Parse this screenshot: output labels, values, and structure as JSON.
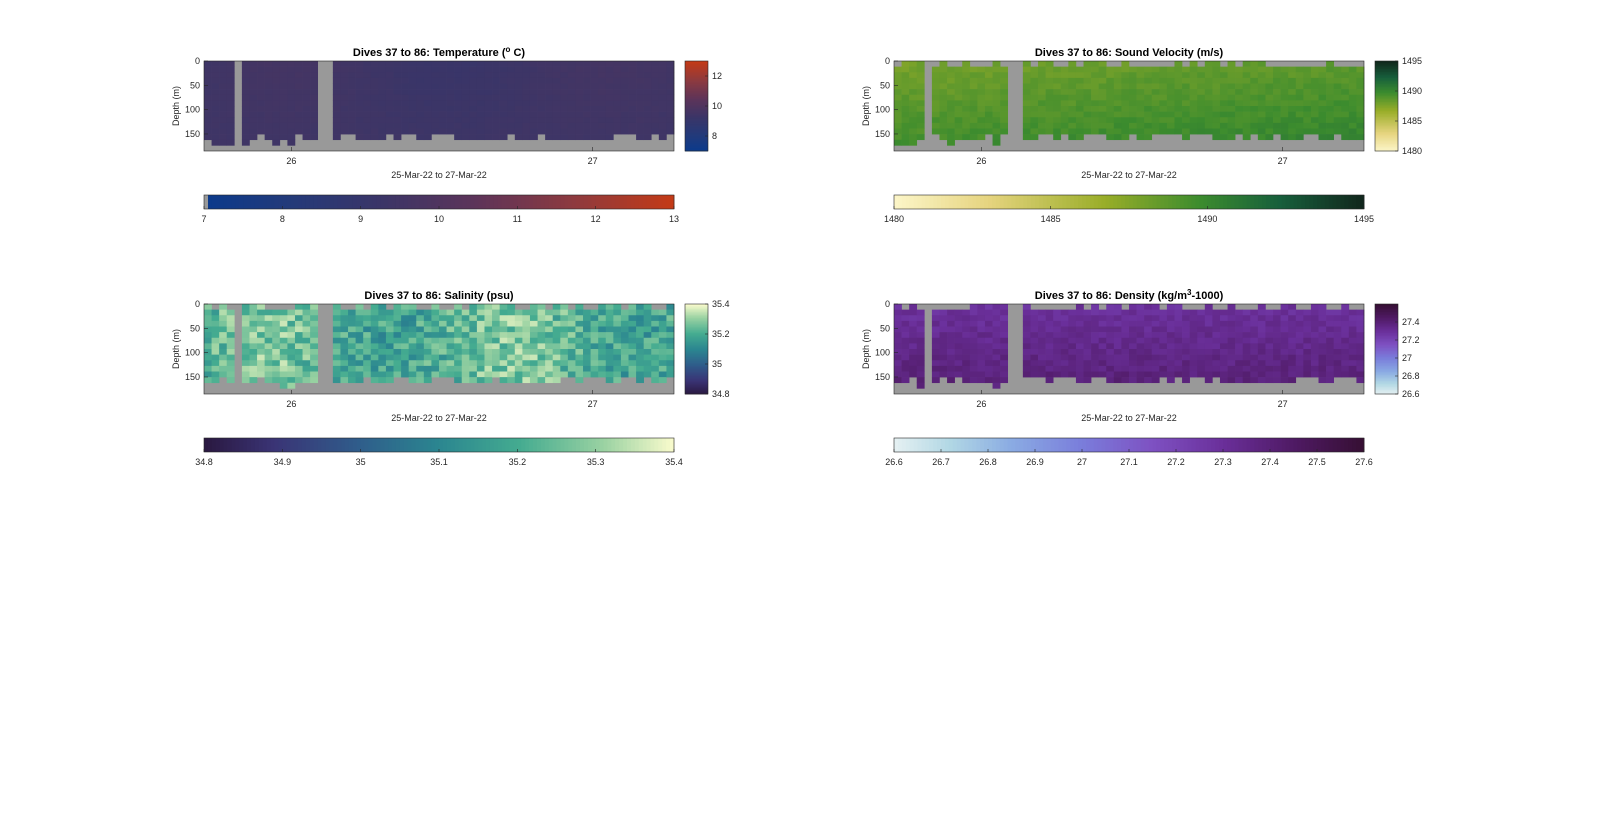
{
  "chart_data": [
    {
      "type": "heatmap",
      "title": "Dives 37 to 86: Temperature (°C)",
      "title_parts": {
        "pre": "Dives 37 to 86: Temperature (",
        "sup": "o",
        "post": " C)"
      },
      "xlabel": "25-Mar-22 to 27-Mar-22",
      "ylabel": "Depth (m)",
      "x_ticks": [
        "26",
        "27"
      ],
      "y_ticks": [
        "0",
        "50",
        "100",
        "150"
      ],
      "ylim": [
        0,
        185
      ],
      "xlim_days": [
        25.71,
        27.27
      ],
      "cell_value_range": [
        9.1,
        9.8
      ],
      "clim": [
        7,
        13
      ],
      "colormap": "thermal",
      "colorbar_ticks": [
        "8",
        "10",
        "12"
      ],
      "colorbar_tick_values": [
        8,
        10,
        12
      ],
      "horizontal_colorbar_ticks": [
        "7",
        "8",
        "9",
        "10",
        "11",
        "12",
        "13"
      ],
      "horizontal_colorbar_tick_values": [
        7,
        8,
        9,
        10,
        11,
        12,
        13
      ],
      "no_data_color": "#999999"
    },
    {
      "type": "heatmap",
      "title": "Dives 37 to 86: Sound Velocity (m/s)",
      "title_parts": {
        "pre": "Dives 37 to 86: Sound Velocity (m/s)",
        "sup": "",
        "post": ""
      },
      "xlabel": "25-Mar-22 to 27-Mar-22",
      "ylabel": "Depth (m)",
      "x_ticks": [
        "26",
        "27"
      ],
      "y_ticks": [
        "0",
        "50",
        "100",
        "150"
      ],
      "ylim": [
        0,
        185
      ],
      "xlim_days": [
        25.71,
        27.27
      ],
      "cell_value_range": [
        1486.5,
        1490.5
      ],
      "clim": [
        1480,
        1495
      ],
      "colormap": "speed",
      "colorbar_ticks": [
        "1480",
        "1485",
        "1490",
        "1495"
      ],
      "colorbar_tick_values": [
        1480,
        1485,
        1490,
        1495
      ],
      "horizontal_colorbar_ticks": [
        "1480",
        "1485",
        "1490",
        "1495"
      ],
      "horizontal_colorbar_tick_values": [
        1480,
        1485,
        1490,
        1495
      ],
      "no_data_color": "#999999"
    },
    {
      "type": "heatmap",
      "title": "Dives 37 to 86: Salinity (psu)",
      "title_parts": {
        "pre": "Dives 37 to 86: Salinity (psu)",
        "sup": "",
        "post": ""
      },
      "xlabel": "25-Mar-22 to 27-Mar-22",
      "ylabel": "Depth (m)",
      "x_ticks": [
        "26",
        "27"
      ],
      "y_ticks": [
        "0",
        "50",
        "100",
        "150"
      ],
      "ylim": [
        0,
        185
      ],
      "xlim_days": [
        25.71,
        27.27
      ],
      "cell_value_range": [
        35.05,
        35.38
      ],
      "clim": [
        34.8,
        35.4
      ],
      "colormap": "haline",
      "colorbar_ticks": [
        "34.8",
        "35",
        "35.2",
        "35.4"
      ],
      "colorbar_tick_values": [
        34.8,
        35.0,
        35.2,
        35.4
      ],
      "horizontal_colorbar_ticks": [
        "34.8",
        "34.9",
        "35",
        "35.1",
        "35.2",
        "35.3",
        "35.4"
      ],
      "horizontal_colorbar_tick_values": [
        34.8,
        34.9,
        35.0,
        35.1,
        35.2,
        35.3,
        35.4
      ],
      "no_data_color": "#999999"
    },
    {
      "type": "heatmap",
      "title": "Dives 37 to 86: Density (kg/m³-1000)",
      "title_parts": {
        "pre": "Dives 37 to 86: Density (kg/m",
        "sup": "3",
        "post": "-1000)"
      },
      "xlabel": "25-Mar-22 to 27-Mar-22",
      "ylabel": "Depth (m)",
      "x_ticks": [
        "26",
        "27"
      ],
      "y_ticks": [
        "0",
        "50",
        "100",
        "150"
      ],
      "ylim": [
        0,
        185
      ],
      "xlim_days": [
        25.71,
        27.27
      ],
      "cell_value_range": [
        27.15,
        27.45
      ],
      "clim": [
        26.6,
        27.6
      ],
      "colormap": "dense",
      "colorbar_ticks": [
        "26.6",
        "26.8",
        "27",
        "27.2",
        "27.4"
      ],
      "colorbar_tick_values": [
        26.6,
        26.8,
        27.0,
        27.2,
        27.4
      ],
      "horizontal_colorbar_ticks": [
        "26.6",
        "26.7",
        "26.8",
        "26.9",
        "27",
        "27.1",
        "27.2",
        "27.3",
        "27.4",
        "27.5",
        "27.6"
      ],
      "horizontal_colorbar_tick_values": [
        26.6,
        26.7,
        26.8,
        26.9,
        27.0,
        27.1,
        27.2,
        27.3,
        27.4,
        27.5,
        27.6
      ],
      "no_data_color": "#999999"
    }
  ]
}
